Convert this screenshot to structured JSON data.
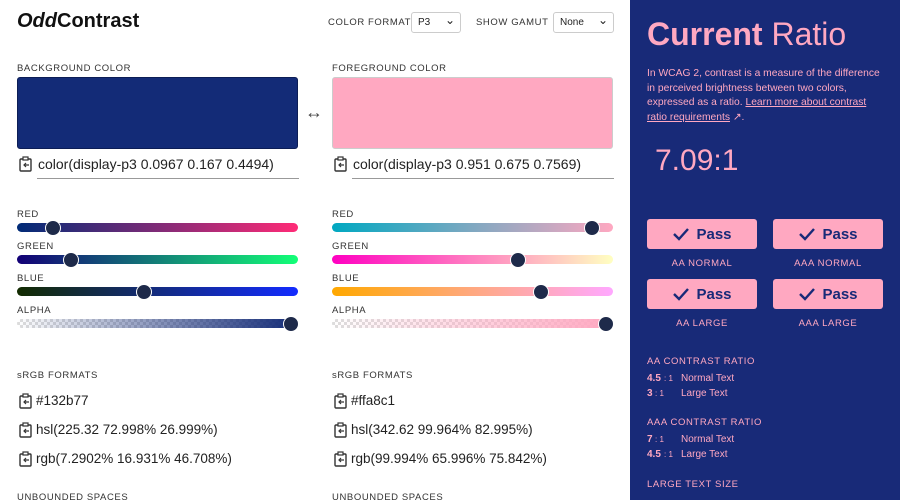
{
  "header": {
    "logo_odd": "Odd",
    "logo_contrast": "Contrast",
    "color_format_label": "COLOR FORMAT",
    "color_format_value": "P3",
    "show_gamut_label": "SHOW GAMUT",
    "show_gamut_value": "None"
  },
  "background": {
    "label": "BACKGROUND COLOR",
    "value": "color(display-p3 0.0967 0.167 0.4494)",
    "sliders": [
      "RED",
      "GREEN",
      "BLUE",
      "ALPHA"
    ],
    "formats_title": "sRGB FORMATS",
    "formats": [
      "#132b77",
      "hsl(225.32 72.998% 26.999%)",
      "rgb(7.2902% 16.931% 46.708%)"
    ],
    "unbounded_title": "UNBOUNDED SPACES"
  },
  "foreground": {
    "label": "FOREGROUND COLOR",
    "value": "color(display-p3 0.951 0.675 0.7569)",
    "sliders": [
      "RED",
      "GREEN",
      "BLUE",
      "ALPHA"
    ],
    "formats_title": "sRGB FORMATS",
    "formats": [
      "#ffa8c1",
      "hsl(342.62 99.964% 82.995%)",
      "rgb(99.994% 65.996% 75.842%)"
    ],
    "unbounded_title": "UNBOUNDED SPACES"
  },
  "panel": {
    "title_bold": "Current",
    "title_light": "Ratio",
    "description": "In WCAG 2, contrast is a measure of the difference in perceived brightness between two colors, expressed as a ratio.",
    "link": "Learn more about contrast ratio requirements",
    "description_end": ".",
    "ratio": "7.09:1",
    "checks": [
      {
        "button": "Pass",
        "label": "AA NORMAL"
      },
      {
        "button": "Pass",
        "label": "AAA NORMAL"
      },
      {
        "button": "Pass",
        "label": "AA LARGE"
      },
      {
        "button": "Pass",
        "label": "AAA LARGE"
      }
    ],
    "sections": [
      {
        "title": "AA CONTRAST RATIO",
        "rows": [
          {
            "ratio": "4.5",
            "unit": ": 1",
            "label": "Normal Text"
          },
          {
            "ratio": "3",
            "unit": ": 1",
            "label": "Large Text"
          }
        ]
      },
      {
        "title": "AAA CONTRAST RATIO",
        "rows": [
          {
            "ratio": "7",
            "unit": ": 1",
            "label": "Normal Text"
          },
          {
            "ratio": "4.5",
            "unit": ": 1",
            "label": "Large Text"
          }
        ]
      }
    ],
    "large_text_title": "LARGE TEXT SIZE"
  }
}
